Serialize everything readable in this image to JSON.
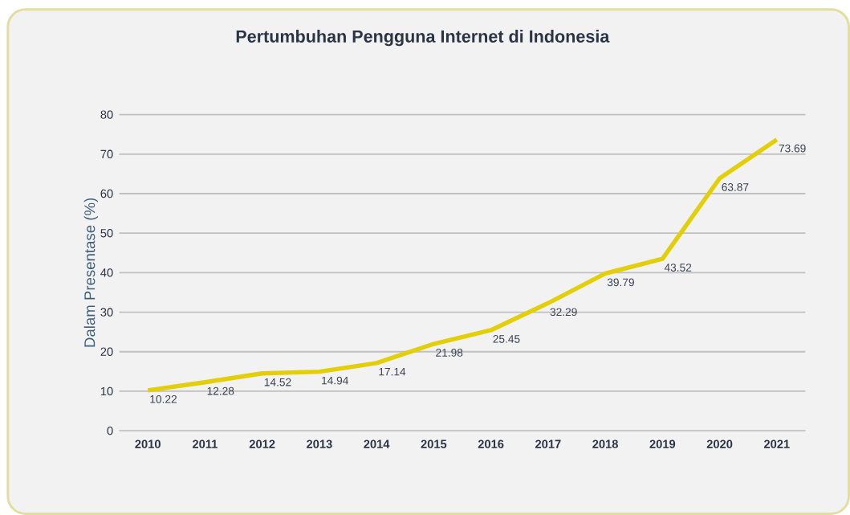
{
  "chart_data": {
    "type": "line",
    "title": "Pertumbuhan Pengguna Internet di Indonesia",
    "ylabel": "Dalam Presentase (%)",
    "categories": [
      "2010",
      "2011",
      "2012",
      "2013",
      "2014",
      "2015",
      "2016",
      "2017",
      "2018",
      "2019",
      "2020",
      "2021"
    ],
    "series": [
      {
        "color": "#e2cf0a",
        "values": [
          10.22,
          12.28,
          14.52,
          14.94,
          17.14,
          21.98,
          25.45,
          32.29,
          39.79,
          43.52,
          63.87,
          73.69
        ]
      }
    ],
    "ylim": [
      0,
      80
    ],
    "yticks": [
      0,
      10,
      20,
      30,
      40,
      50,
      60,
      70,
      80
    ],
    "grid": "y",
    "data_labels": true,
    "marker": "none",
    "line_style": "solid"
  }
}
